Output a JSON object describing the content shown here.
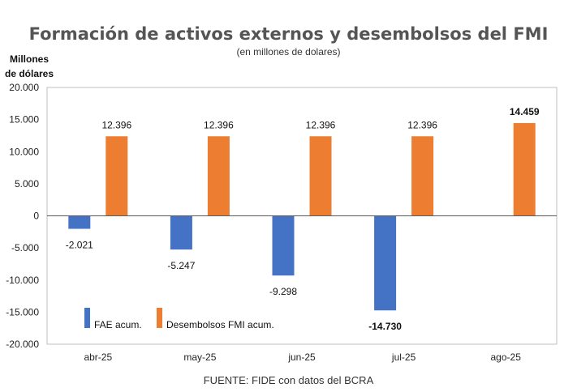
{
  "chart_data": {
    "type": "bar",
    "title": "Formación de activos externos y desembolsos del FMI",
    "subtitle": "(en millones de dolares)",
    "ylabel": "Millones de dólares",
    "source": "FUENTE: FIDE con datos del BCRA",
    "categories": [
      "abr-25",
      "may-25",
      "jun-25",
      "jul-25",
      "ago-25"
    ],
    "ylim": [
      -20000,
      20000
    ],
    "yticks": [
      20000,
      15000,
      10000,
      5000,
      0,
      -5000,
      -10000,
      -15000,
      -20000
    ],
    "ytick_labels": [
      "20.000",
      "15.000",
      "10.000",
      "5.000",
      "0",
      "-5.000",
      "-10.000",
      "-15.000",
      "-20.000"
    ],
    "grid": false,
    "legend_position": "bottom-left",
    "series": [
      {
        "name": "FAE acum.",
        "color": "#4472C4",
        "values": [
          -2021,
          -5247,
          -9298,
          -14730,
          null
        ],
        "labels": [
          "-2.021",
          "-5.247",
          "-9.298",
          "-14.730",
          ""
        ],
        "bold": [
          false,
          false,
          false,
          true,
          false
        ]
      },
      {
        "name": "Desembolsos FMI acum.",
        "color": "#ED7D31",
        "values": [
          12396,
          12396,
          12396,
          12396,
          14459
        ],
        "labels": [
          "12.396",
          "12.396",
          "12.396",
          "12.396",
          "14.459"
        ],
        "bold": [
          false,
          false,
          false,
          false,
          true
        ]
      }
    ]
  }
}
